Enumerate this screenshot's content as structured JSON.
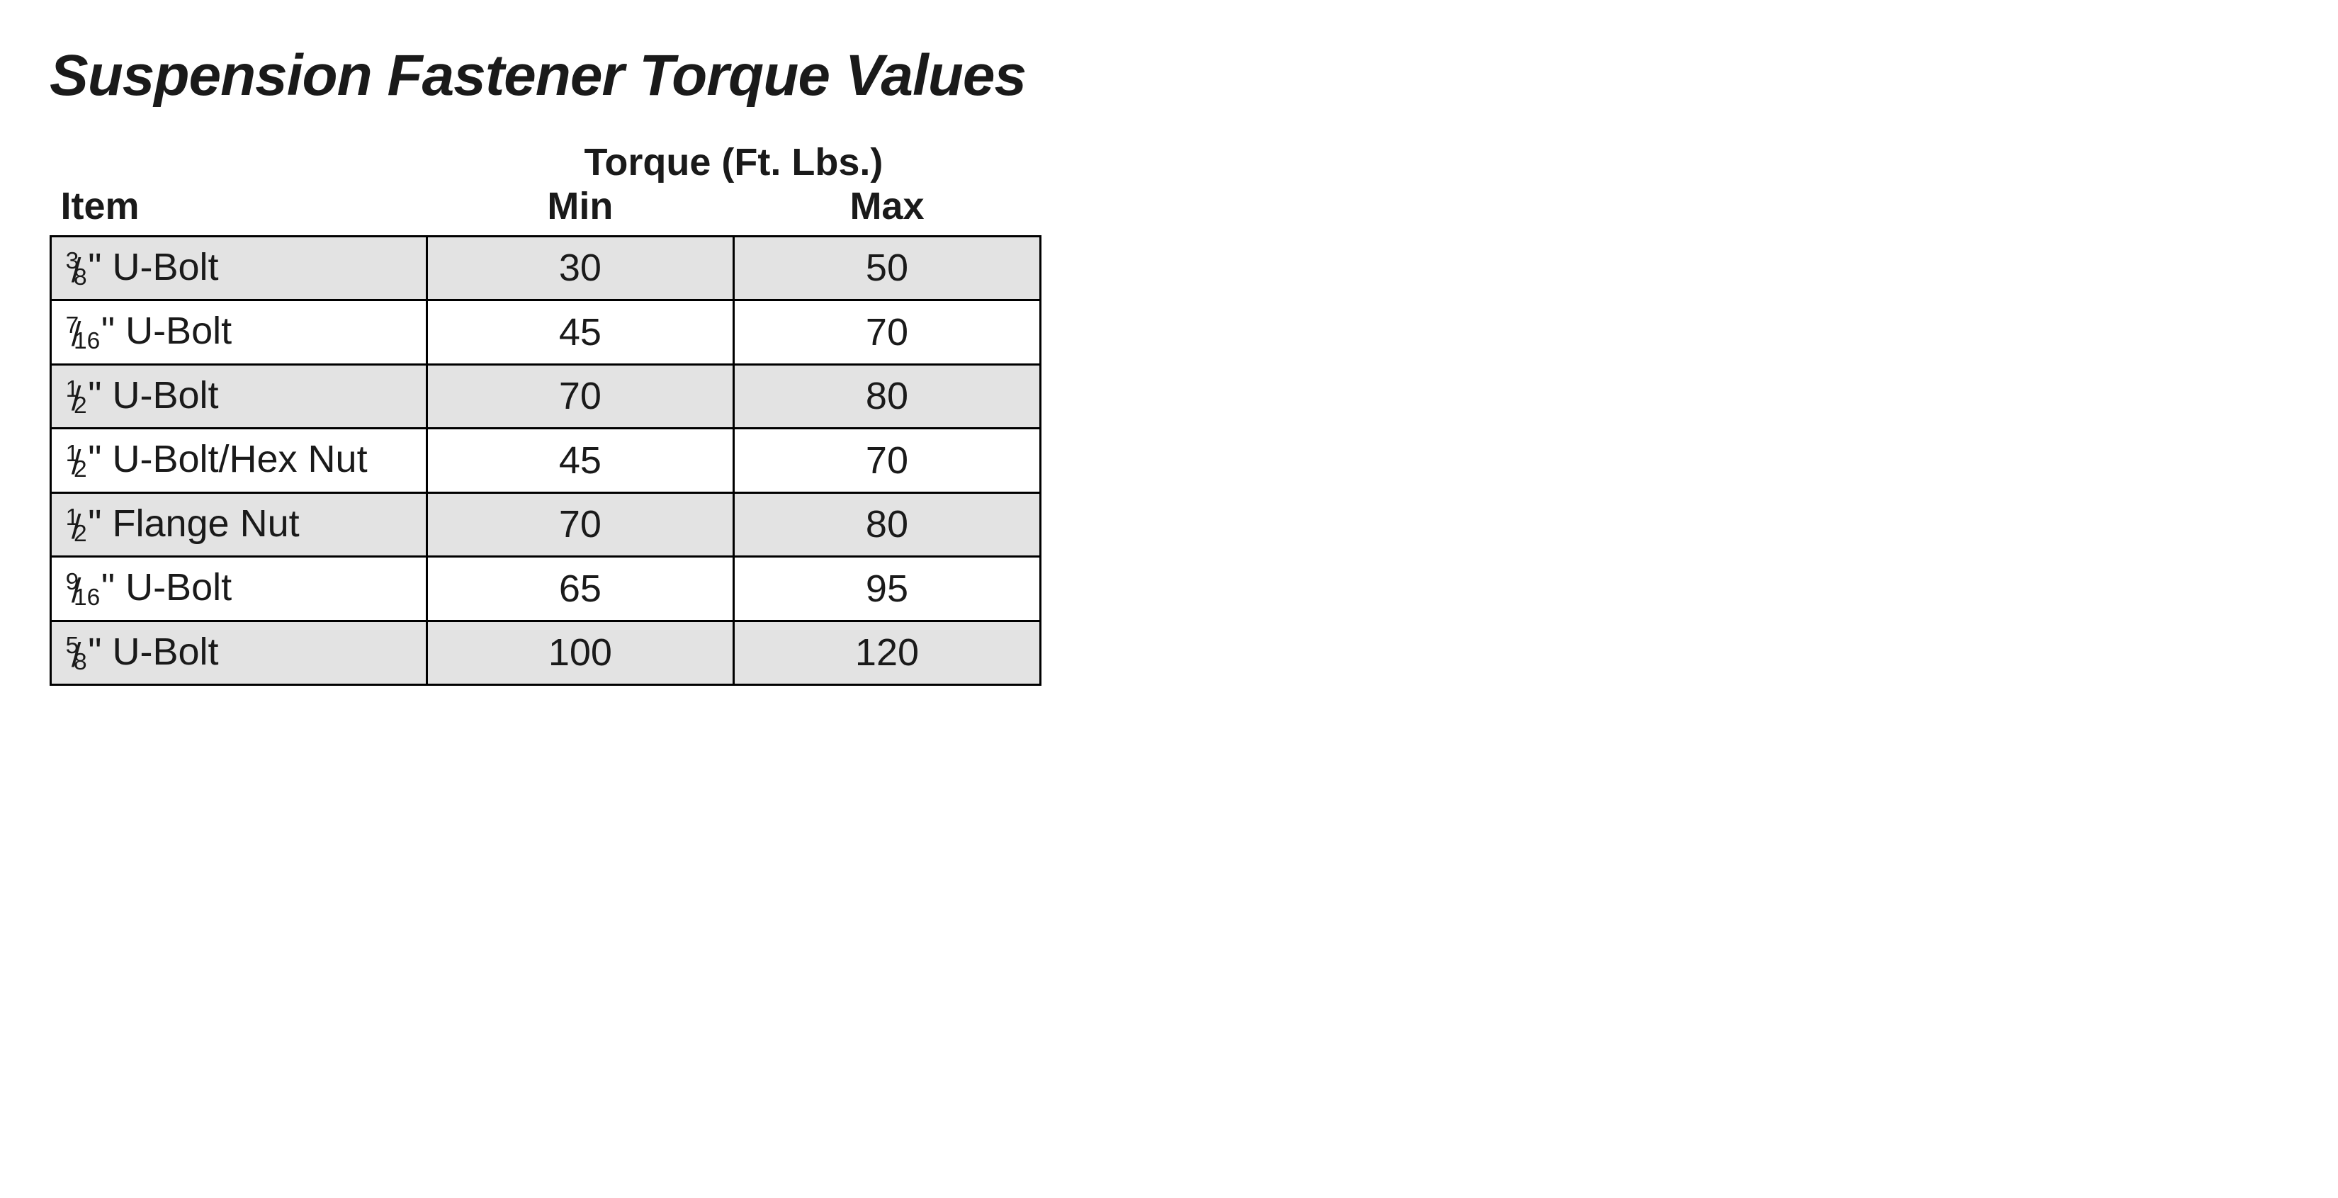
{
  "title": "Suspension Fastener Torque Values",
  "table": {
    "header": {
      "item": "Item",
      "torque_span": "Torque (Ft. Lbs.)",
      "min": "Min",
      "max": "Max"
    },
    "colors": {
      "background": "#ffffff",
      "row_shade": "#e3e3e3",
      "border": "#000000",
      "text": "#1a1a1a"
    },
    "font": {
      "title_size_pt": 62,
      "body_size_pt": 40,
      "family": "Arial"
    },
    "column_widths_pct": [
      38,
      31,
      31
    ],
    "rows": [
      {
        "frac_num": "3",
        "frac_den": "8",
        "rest": "\" U-Bolt",
        "min": "30",
        "max": "50",
        "shaded": true
      },
      {
        "frac_num": "7",
        "frac_den": "16",
        "rest": "\" U-Bolt",
        "min": "45",
        "max": "70",
        "shaded": false
      },
      {
        "frac_num": "1",
        "frac_den": "2",
        "rest": "\" U-Bolt",
        "min": "70",
        "max": "80",
        "shaded": true
      },
      {
        "frac_num": "1",
        "frac_den": "2",
        "rest": "\" U-Bolt/Hex Nut",
        "min": "45",
        "max": "70",
        "shaded": false
      },
      {
        "frac_num": "1",
        "frac_den": "2",
        "rest": "\" Flange Nut",
        "min": "70",
        "max": "80",
        "shaded": true
      },
      {
        "frac_num": "9",
        "frac_den": "16",
        "rest": "\" U-Bolt",
        "min": "65",
        "max": "95",
        "shaded": false
      },
      {
        "frac_num": "5",
        "frac_den": "8",
        "rest": "\" U-Bolt",
        "min": "100",
        "max": "120",
        "shaded": true
      }
    ]
  }
}
